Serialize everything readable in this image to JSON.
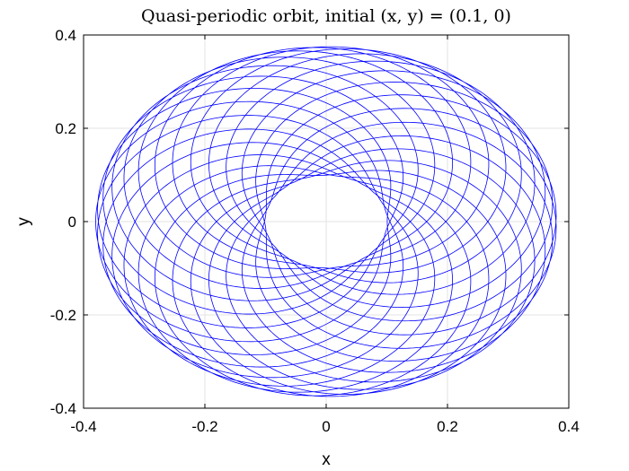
{
  "chart_data": {
    "type": "line",
    "title": "Quasi-periodic orbit, initial (x, y) = (0.1, 0)",
    "xlabel": "x",
    "ylabel": "y",
    "xlim": [
      -0.4,
      0.4
    ],
    "ylim": [
      -0.4,
      0.4
    ],
    "xticks": [
      -0.4,
      -0.2,
      0,
      0.2,
      0.4
    ],
    "yticks": [
      -0.4,
      -0.2,
      0,
      0.2,
      0.4
    ],
    "xtick_labels": [
      "-0.4",
      "-0.2",
      "0",
      "0.2",
      "0.4"
    ],
    "ytick_labels": [
      "-0.4",
      "-0.2",
      "0",
      "0.2",
      "0.4"
    ],
    "grid": true,
    "legend": "none",
    "series": [
      {
        "color": "#0000ff",
        "initial_point": [
          0.1,
          0
        ],
        "inner_radius_x": 0.1,
        "inner_radius_y": 0.1,
        "outer_radius_x": 0.38,
        "outer_radius_y": 0.375,
        "revolutions": 40,
        "frequency_ratio": 0.54
      }
    ]
  }
}
